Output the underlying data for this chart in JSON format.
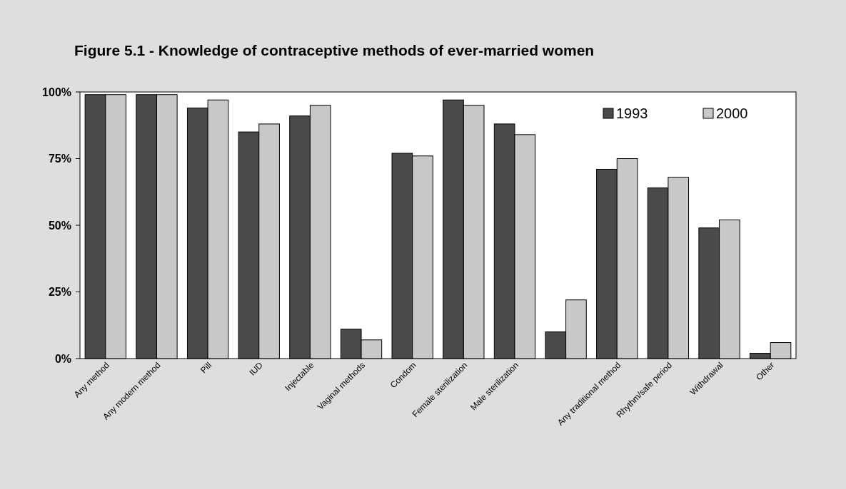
{
  "chart_data": {
    "type": "bar",
    "title": "Figure 5.1 - Knowledge of contraceptive methods of ever-married women",
    "categories": [
      "Any method",
      "Any modern method",
      "Pill",
      "IUD",
      "Injectable",
      "Vaginal methods",
      "Condom",
      "Female sterilization",
      "Male sterilization",
      null,
      "Any traditional method",
      "Rhythm/safe period",
      "Withdrawal",
      "Other"
    ],
    "series": [
      {
        "name": "1993",
        "color": "#4a4a4a",
        "values": [
          99,
          99,
          94,
          85,
          91,
          11,
          77,
          97,
          88,
          10,
          71,
          64,
          49,
          2
        ]
      },
      {
        "name": "2000",
        "color": "#c8c8c8",
        "values": [
          99,
          99,
          97,
          88,
          95,
          7,
          76,
          95,
          84,
          22,
          75,
          68,
          52,
          6
        ]
      }
    ],
    "ylim": [
      0,
      100
    ],
    "yticks": [
      {
        "value": 0,
        "label": "0%"
      },
      {
        "value": 25,
        "label": "25%"
      },
      {
        "value": 50,
        "label": "50%"
      },
      {
        "value": 75,
        "label": "75%"
      },
      {
        "value": 100,
        "label": "100%"
      }
    ],
    "legend": "top right",
    "grid": false
  }
}
